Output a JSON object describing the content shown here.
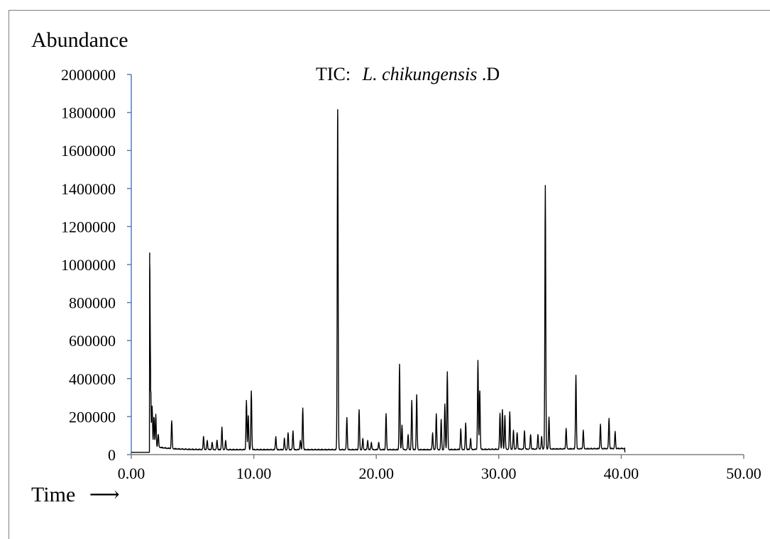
{
  "chart_data": {
    "type": "line",
    "title": {
      "prefix": "TIC:",
      "species": "L. chikungensis",
      "suffix": ".D"
    },
    "ylabel": "Abundance",
    "xlabel": "Time",
    "xlabel_arrow": "⟶",
    "xlim": [
      0,
      50
    ],
    "ylim": [
      0,
      2000000
    ],
    "xticks": [
      "0.00",
      "10.00",
      "20.00",
      "30.00",
      "40.00",
      "50.00"
    ],
    "xtick_values": [
      0,
      10,
      20,
      30,
      40,
      50
    ],
    "yticks": [
      "0",
      "200000",
      "400000",
      "600000",
      "800000",
      "1000000",
      "1200000",
      "1400000",
      "1600000",
      "1800000",
      "2000000"
    ],
    "ytick_values": [
      0,
      200000,
      400000,
      600000,
      800000,
      1000000,
      1200000,
      1400000,
      1600000,
      1800000,
      2000000
    ],
    "grid": false,
    "colors": {
      "trace": "#000000",
      "y_axis": "#4f81bd",
      "x_axis": "#7f7f7f"
    },
    "baseline": 12000,
    "start_time": 1.5,
    "end_time": 40.3,
    "peaks": [
      [
        1.5,
        1000000
      ],
      [
        1.58,
        320000
      ],
      [
        1.7,
        220000
      ],
      [
        1.85,
        170000
      ],
      [
        2.0,
        180000
      ],
      [
        2.2,
        80000
      ],
      [
        3.3,
        160000
      ],
      [
        5.9,
        80000
      ],
      [
        6.2,
        60000
      ],
      [
        6.6,
        50000
      ],
      [
        7.0,
        60000
      ],
      [
        7.4,
        130000
      ],
      [
        7.7,
        60000
      ],
      [
        9.4,
        270000
      ],
      [
        9.55,
        190000
      ],
      [
        9.8,
        320000
      ],
      [
        11.8,
        80000
      ],
      [
        12.5,
        70000
      ],
      [
        12.8,
        100000
      ],
      [
        13.2,
        110000
      ],
      [
        13.8,
        60000
      ],
      [
        14.0,
        230000
      ],
      [
        16.85,
        1800000
      ],
      [
        17.6,
        180000
      ],
      [
        18.6,
        220000
      ],
      [
        18.9,
        70000
      ],
      [
        19.3,
        60000
      ],
      [
        19.6,
        50000
      ],
      [
        20.2,
        50000
      ],
      [
        20.8,
        200000
      ],
      [
        21.9,
        460000
      ],
      [
        22.1,
        140000
      ],
      [
        22.6,
        90000
      ],
      [
        22.9,
        270000
      ],
      [
        23.3,
        300000
      ],
      [
        24.6,
        100000
      ],
      [
        24.9,
        200000
      ],
      [
        25.3,
        170000
      ],
      [
        25.6,
        250000
      ],
      [
        25.8,
        420000
      ],
      [
        26.9,
        120000
      ],
      [
        27.3,
        150000
      ],
      [
        27.7,
        70000
      ],
      [
        28.3,
        480000
      ],
      [
        28.45,
        320000
      ],
      [
        30.1,
        200000
      ],
      [
        30.3,
        220000
      ],
      [
        30.5,
        190000
      ],
      [
        30.9,
        210000
      ],
      [
        31.2,
        110000
      ],
      [
        31.5,
        100000
      ],
      [
        32.1,
        110000
      ],
      [
        32.6,
        90000
      ],
      [
        33.2,
        90000
      ],
      [
        33.5,
        80000
      ],
      [
        33.8,
        1400000
      ],
      [
        34.1,
        180000
      ],
      [
        35.5,
        120000
      ],
      [
        36.3,
        400000
      ],
      [
        36.9,
        110000
      ],
      [
        38.3,
        140000
      ],
      [
        39.0,
        170000
      ],
      [
        39.5,
        100000
      ]
    ]
  }
}
